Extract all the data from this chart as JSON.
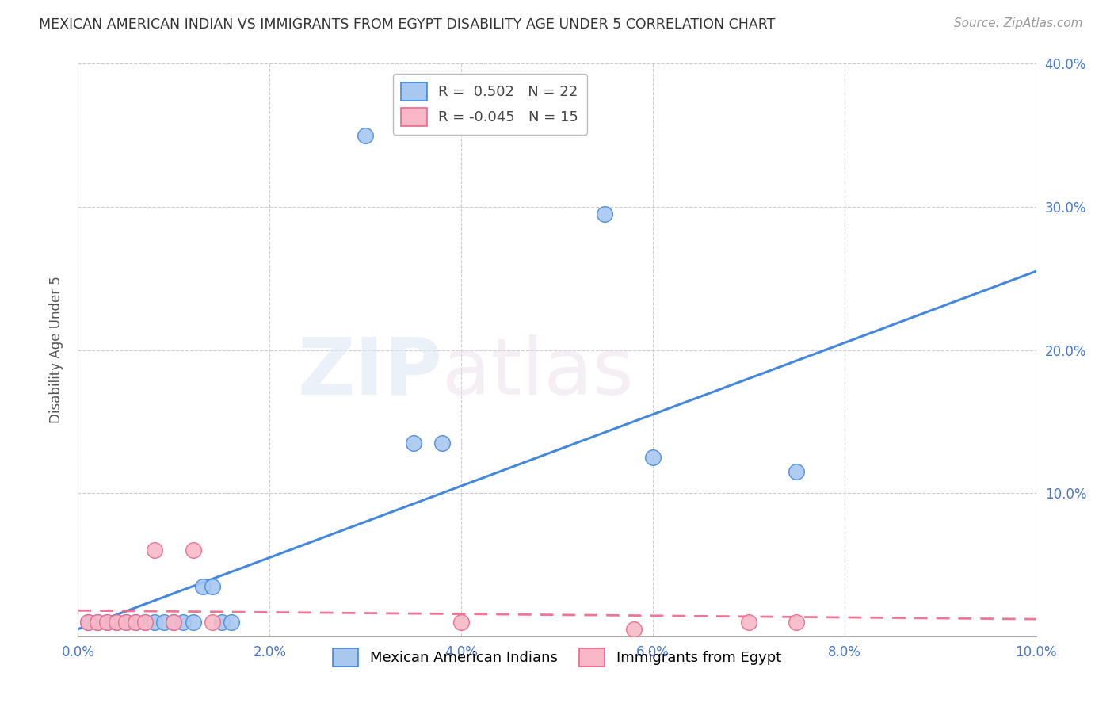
{
  "title": "MEXICAN AMERICAN INDIAN VS IMMIGRANTS FROM EGYPT DISABILITY AGE UNDER 5 CORRELATION CHART",
  "source": "Source: ZipAtlas.com",
  "ylabel": "Disability Age Under 5",
  "xlim": [
    0.0,
    0.1
  ],
  "ylim": [
    0.0,
    0.4
  ],
  "xticks": [
    0.0,
    0.02,
    0.04,
    0.06,
    0.08,
    0.1
  ],
  "yticks": [
    0.0,
    0.1,
    0.2,
    0.3,
    0.4
  ],
  "xtick_labels": [
    "0.0%",
    "2.0%",
    "4.0%",
    "6.0%",
    "8.0%",
    "10.0%"
  ],
  "ytick_labels": [
    "",
    "10.0%",
    "20.0%",
    "30.0%",
    "40.0%"
  ],
  "blue_x": [
    0.001,
    0.002,
    0.003,
    0.004,
    0.005,
    0.006,
    0.007,
    0.008,
    0.009,
    0.01,
    0.011,
    0.012,
    0.013,
    0.014,
    0.015,
    0.016,
    0.03,
    0.035,
    0.038,
    0.055,
    0.06,
    0.075
  ],
  "blue_y": [
    0.01,
    0.01,
    0.01,
    0.01,
    0.01,
    0.01,
    0.01,
    0.01,
    0.01,
    0.01,
    0.01,
    0.01,
    0.035,
    0.035,
    0.01,
    0.01,
    0.35,
    0.135,
    0.135,
    0.295,
    0.125,
    0.115
  ],
  "pink_x": [
    0.001,
    0.002,
    0.003,
    0.004,
    0.005,
    0.006,
    0.007,
    0.008,
    0.01,
    0.012,
    0.014,
    0.04,
    0.058,
    0.07,
    0.075
  ],
  "pink_y": [
    0.01,
    0.01,
    0.01,
    0.01,
    0.01,
    0.01,
    0.01,
    0.06,
    0.01,
    0.06,
    0.01,
    0.01,
    0.005,
    0.01,
    0.01
  ],
  "blue_R": 0.502,
  "blue_N": 22,
  "pink_R": -0.045,
  "pink_N": 15,
  "blue_color": "#A8C8F0",
  "pink_color": "#F8B8C8",
  "blue_line_color": "#4488DD",
  "pink_line_color": "#EE6688",
  "marker_size": 200,
  "background_color": "#ffffff",
  "grid_color": "#cccccc",
  "watermark_zip": "ZIP",
  "watermark_atlas": "atlas",
  "legend_label_blue": "Mexican American Indians",
  "legend_label_pink": "Immigrants from Egypt",
  "blue_trend_x": [
    0.0,
    0.1
  ],
  "blue_trend_y": [
    0.005,
    0.255
  ],
  "pink_trend_x": [
    0.0,
    0.1
  ],
  "pink_trend_y": [
    0.018,
    0.012
  ]
}
